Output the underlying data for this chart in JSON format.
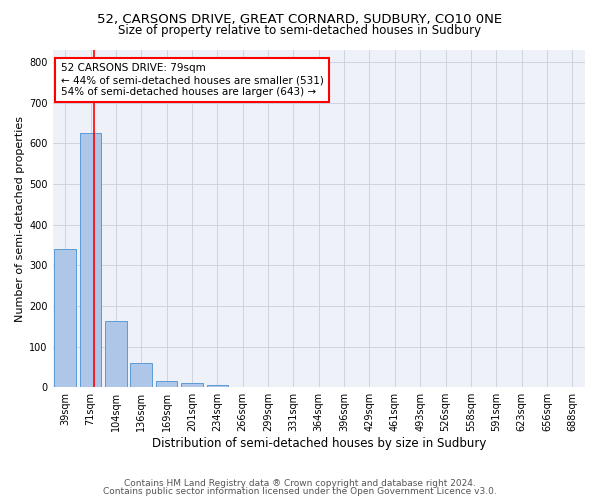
{
  "title_line1": "52, CARSONS DRIVE, GREAT CORNARD, SUDBURY, CO10 0NE",
  "title_line2": "Size of property relative to semi-detached houses in Sudbury",
  "xlabel": "Distribution of semi-detached houses by size in Sudbury",
  "ylabel": "Number of semi-detached properties",
  "bin_labels": [
    "39sqm",
    "71sqm",
    "104sqm",
    "136sqm",
    "169sqm",
    "201sqm",
    "234sqm",
    "266sqm",
    "299sqm",
    "331sqm",
    "364sqm",
    "396sqm",
    "429sqm",
    "461sqm",
    "493sqm",
    "526sqm",
    "558sqm",
    "591sqm",
    "623sqm",
    "656sqm",
    "688sqm"
  ],
  "bar_values": [
    340,
    625,
    163,
    60,
    16,
    11,
    6,
    0,
    0,
    0,
    0,
    0,
    0,
    0,
    0,
    0,
    0,
    0,
    0,
    0,
    0
  ],
  "bar_color": "#aec6e8",
  "bar_edge_color": "#5b9bd5",
  "annotation_title": "52 CARSONS DRIVE: 79sqm",
  "annotation_line1": "← 44% of semi-detached houses are smaller (531)",
  "annotation_line2": "54% of semi-detached houses are larger (643) →",
  "annotation_box_color": "white",
  "annotation_box_edge_color": "red",
  "ylim": [
    0,
    830
  ],
  "yticks": [
    0,
    100,
    200,
    300,
    400,
    500,
    600,
    700,
    800
  ],
  "footnote1": "Contains HM Land Registry data ® Crown copyright and database right 2024.",
  "footnote2": "Contains public sector information licensed under the Open Government Licence v3.0.",
  "background_color": "#eef2f8",
  "grid_color": "#c8d0dc",
  "title1_fontsize": 9.5,
  "title2_fontsize": 8.5,
  "xlabel_fontsize": 8.5,
  "ylabel_fontsize": 8,
  "tick_fontsize": 7,
  "footnote_fontsize": 6.5,
  "annotation_fontsize": 7.5,
  "red_line_x": 1.15
}
